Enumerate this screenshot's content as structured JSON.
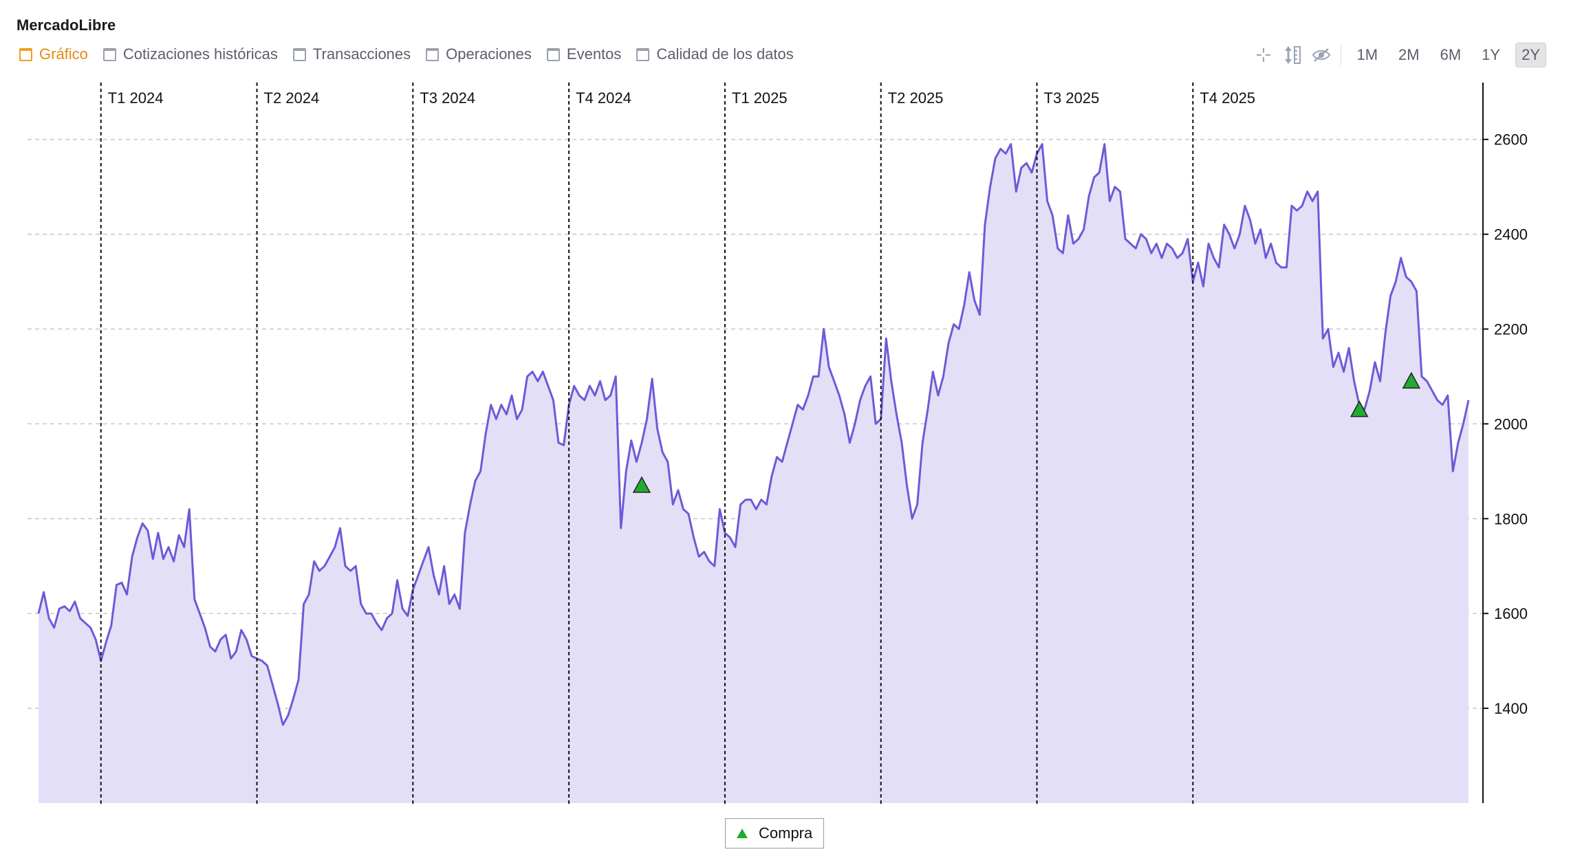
{
  "title": "MercadoLibre",
  "tabs": [
    {
      "label": "Gráfico",
      "active": true
    },
    {
      "label": "Cotizaciones históricas",
      "active": false
    },
    {
      "label": "Transacciones",
      "active": false
    },
    {
      "label": "Operaciones",
      "active": false
    },
    {
      "label": "Eventos",
      "active": false
    },
    {
      "label": "Calidad de los datos",
      "active": false
    }
  ],
  "toolbar": {
    "icons": [
      "crosshair-icon",
      "vertical-scale-icon",
      "hide-eye-icon"
    ],
    "ranges": [
      {
        "label": "1M",
        "active": false
      },
      {
        "label": "2M",
        "active": false
      },
      {
        "label": "6M",
        "active": false
      },
      {
        "label": "1Y",
        "active": false
      },
      {
        "label": "2Y",
        "active": true
      }
    ]
  },
  "legend": {
    "label": "Compra",
    "color": "#22aa33"
  },
  "colors": {
    "line": "#6b5bd8",
    "fill": "#e3dff7",
    "marker": "#22aa33"
  },
  "chart_data": {
    "type": "area",
    "title": "",
    "xlabel": "",
    "ylabel": "",
    "ylim": [
      1200,
      2720
    ],
    "y_ticks": [
      1400,
      1600,
      1800,
      2000,
      2200,
      2400,
      2600
    ],
    "grid": true,
    "y_axis_side": "right",
    "legend_position": "bottom-center",
    "quarters": [
      "T1 2024",
      "T2 2024",
      "T3 2024",
      "T4 2024",
      "T1 2025",
      "T2 2025",
      "T3 2025",
      "T4 2025"
    ],
    "quarter_start_index": [
      12,
      42,
      72,
      102,
      132,
      162,
      192,
      222
    ],
    "series": [
      {
        "values": [
          1600,
          1645,
          1590,
          1570,
          1610,
          1615,
          1605,
          1625,
          1590,
          1580,
          1570,
          1545,
          1500,
          1540,
          1575,
          1660,
          1665,
          1640,
          1720,
          1760,
          1790,
          1775,
          1715,
          1770,
          1715,
          1740,
          1710,
          1765,
          1740,
          1820,
          1630,
          1600,
          1570,
          1530,
          1520,
          1545,
          1555,
          1505,
          1520,
          1565,
          1545,
          1510,
          1505,
          1500,
          1490,
          1450,
          1410,
          1365,
          1385,
          1420,
          1460,
          1620,
          1640,
          1710,
          1690,
          1700,
          1720,
          1740,
          1780,
          1700,
          1690,
          1700,
          1620,
          1600,
          1600,
          1580,
          1565,
          1590,
          1600,
          1670,
          1610,
          1595,
          1650,
          1680,
          1710,
          1740,
          1680,
          1640,
          1700,
          1620,
          1640,
          1610,
          1770,
          1830,
          1880,
          1900,
          1980,
          2040,
          2010,
          2040,
          2020,
          2060,
          2010,
          2030,
          2100,
          2110,
          2090,
          2110,
          2080,
          2050,
          1960,
          1955,
          2040,
          2080,
          2060,
          2050,
          2080,
          2060,
          2090,
          2050,
          2060,
          2100,
          1780,
          1900,
          1965,
          1920,
          1960,
          2010,
          2095,
          1990,
          1940,
          1920,
          1830,
          1860,
          1820,
          1810,
          1760,
          1720,
          1730,
          1710,
          1700,
          1820,
          1770,
          1760,
          1740,
          1830,
          1840,
          1840,
          1820,
          1840,
          1830,
          1890,
          1930,
          1920,
          1960,
          2000,
          2040,
          2030,
          2060,
          2100,
          2100,
          2200,
          2120,
          2090,
          2060,
          2020,
          1960,
          2000,
          2050,
          2080,
          2100,
          2000,
          2010,
          2180,
          2090,
          2020,
          1960,
          1870,
          1800,
          1830,
          1960,
          2030,
          2110,
          2060,
          2100,
          2170,
          2210,
          2200,
          2250,
          2320,
          2260,
          2230,
          2420,
          2500,
          2560,
          2580,
          2570,
          2590,
          2490,
          2540,
          2550,
          2530,
          2570,
          2590,
          2470,
          2440,
          2370,
          2360,
          2440,
          2380,
          2390,
          2410,
          2480,
          2520,
          2530,
          2590,
          2470,
          2500,
          2490,
          2390,
          2380,
          2370,
          2400,
          2390,
          2360,
          2380,
          2350,
          2380,
          2370,
          2350,
          2360,
          2390,
          2300,
          2340,
          2290,
          2380,
          2350,
          2330,
          2420,
          2400,
          2370,
          2400,
          2460,
          2430,
          2380,
          2410,
          2350,
          2380,
          2340,
          2330,
          2330,
          2460,
          2450,
          2460,
          2490,
          2470,
          2490,
          2180,
          2200,
          2120,
          2150,
          2110,
          2160,
          2090,
          2040,
          2030,
          2070,
          2130,
          2090,
          2190,
          2270,
          2300,
          2350,
          2310,
          2300,
          2280,
          2100,
          2090,
          2070,
          2050,
          2040,
          2060,
          1900,
          1960,
          2000,
          2050
        ]
      }
    ],
    "markers": [
      {
        "label": "Compra",
        "index": 116,
        "y": 1870
      },
      {
        "label": "Compra",
        "index": 254,
        "y": 2030
      },
      {
        "label": "Compra",
        "index": 264,
        "y": 2090
      }
    ]
  }
}
